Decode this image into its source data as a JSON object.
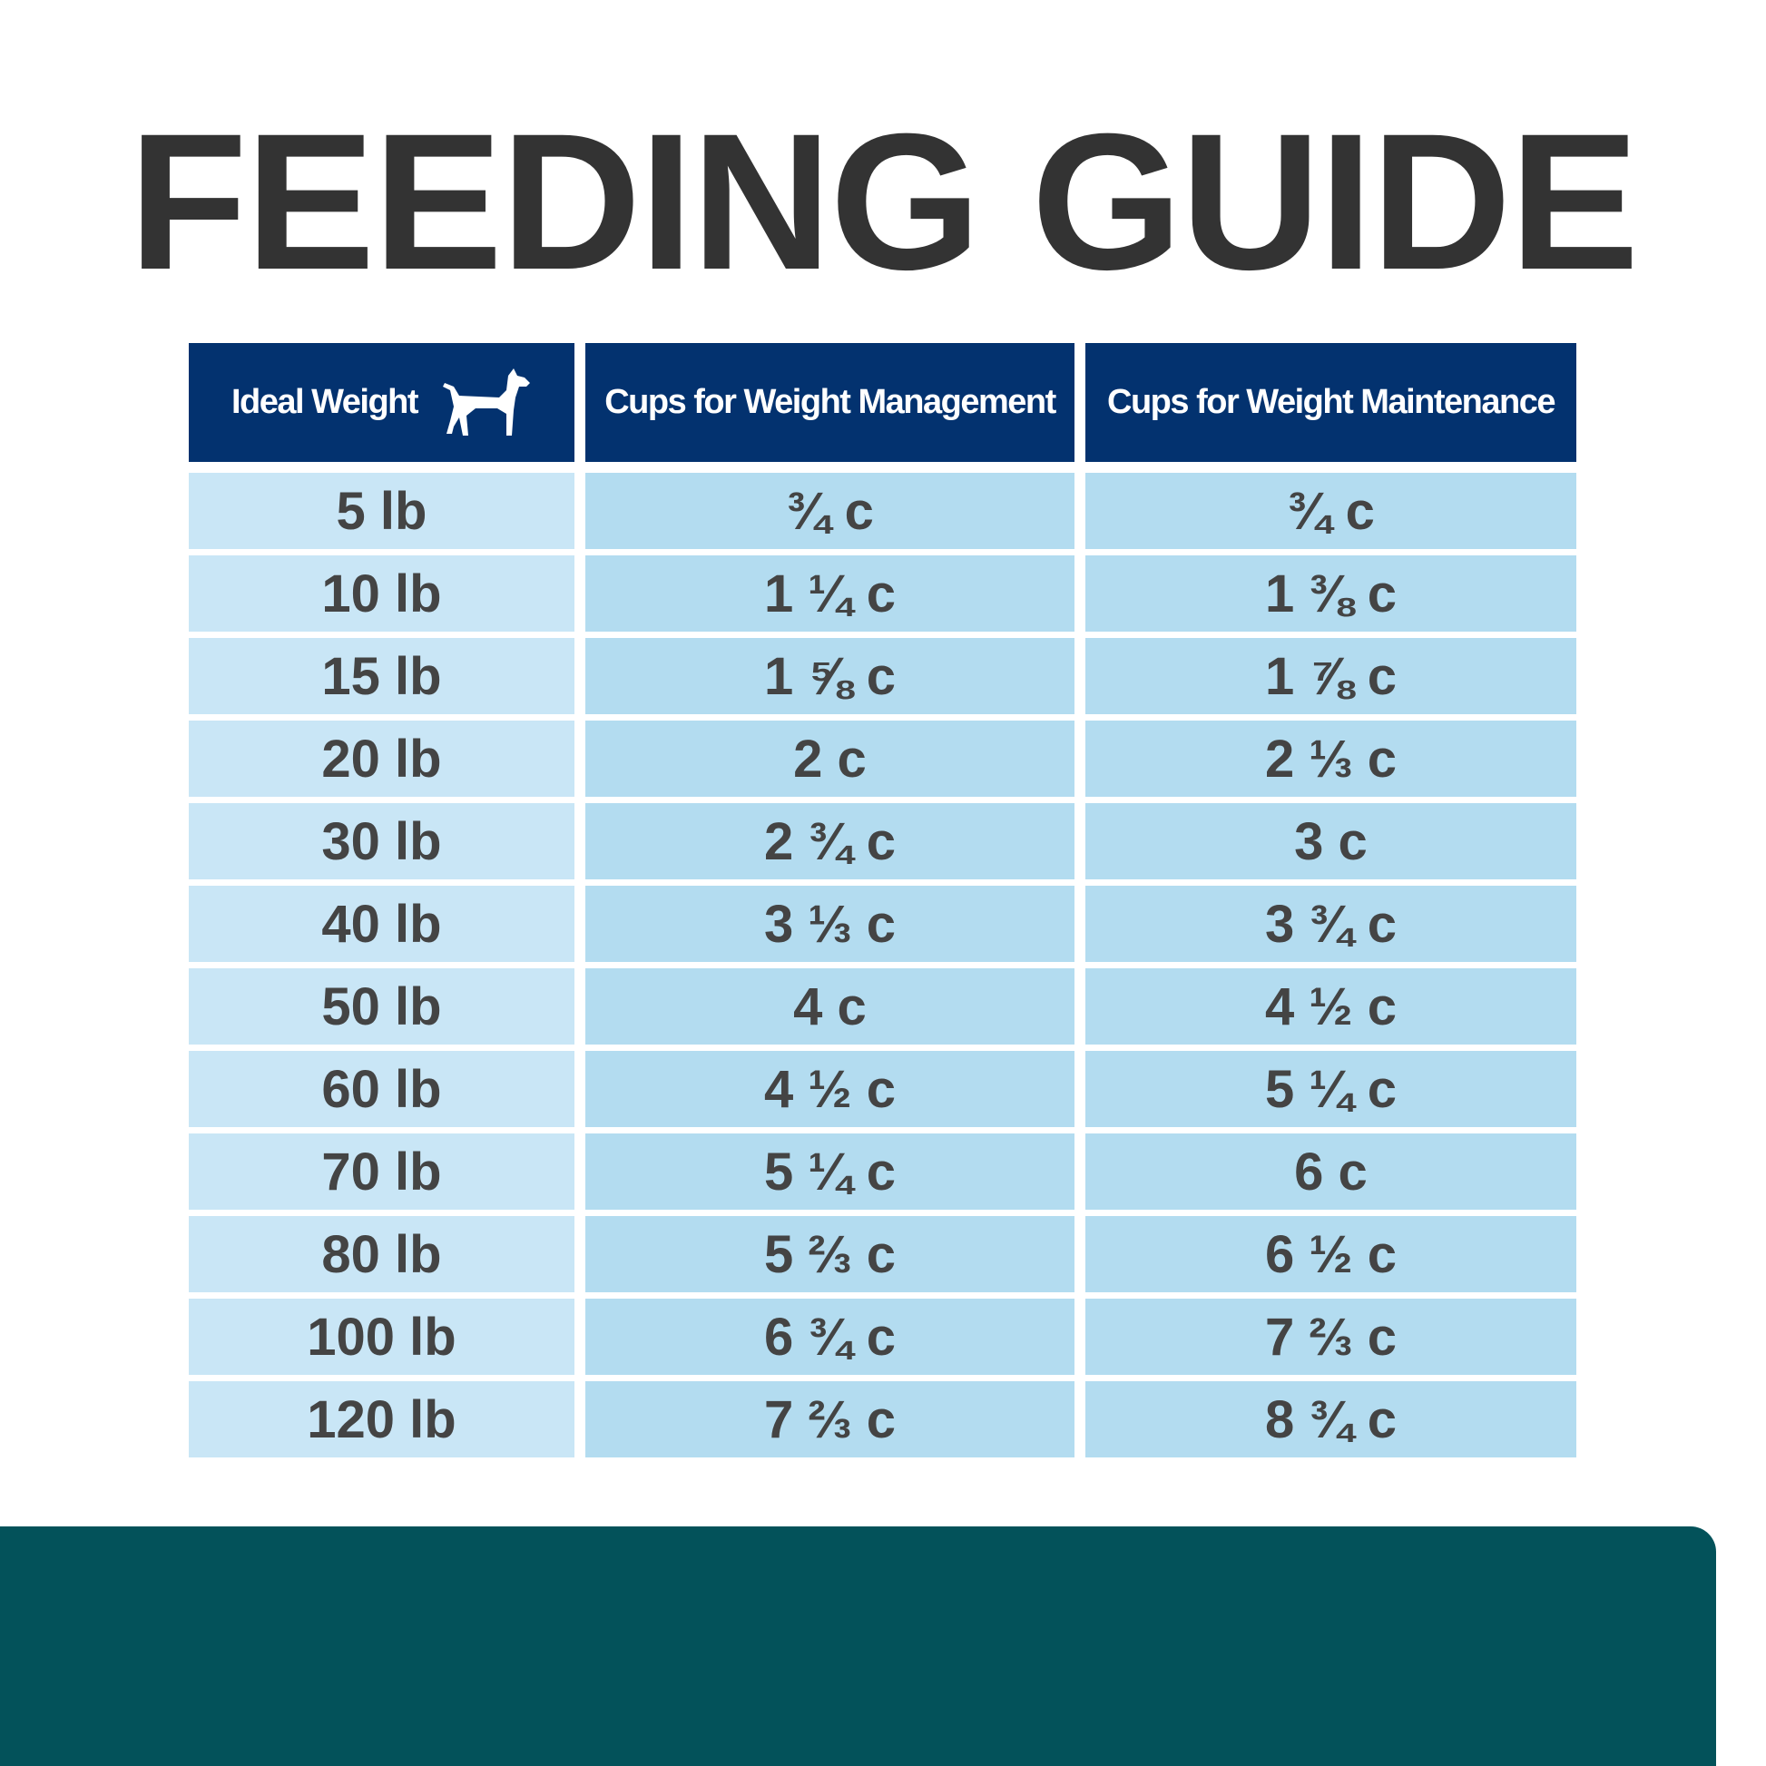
{
  "title": "FEEDING GUIDE",
  "table": {
    "headers": [
      "Ideal Weight",
      "Cups for Weight Management",
      "Cups for Weight Maintenance"
    ],
    "rows": [
      [
        "5 lb",
        "¾ c",
        "¾ c"
      ],
      [
        "10 lb",
        "1 ¼ c",
        "1 ⅜ c"
      ],
      [
        "15 lb",
        "1 ⅝ c",
        "1 ⅞ c"
      ],
      [
        "20 lb",
        "2 c",
        "2 ⅓ c"
      ],
      [
        "30 lb",
        "2 ¾ c",
        "3 c"
      ],
      [
        "40 lb",
        "3 ⅓ c",
        "3 ¾ c"
      ],
      [
        "50 lb",
        "4 c",
        "4 ½ c"
      ],
      [
        "60 lb",
        "4 ½ c",
        "5 ¼ c"
      ],
      [
        "70 lb",
        "5 ¼ c",
        "6 c"
      ],
      [
        "80 lb",
        "5 ⅔ c",
        "6 ½ c"
      ],
      [
        "100 lb",
        "6 ¾ c",
        "7 ⅔ c"
      ],
      [
        "120 lb",
        "7 ⅔ c",
        "8 ¾ c"
      ]
    ]
  }
}
